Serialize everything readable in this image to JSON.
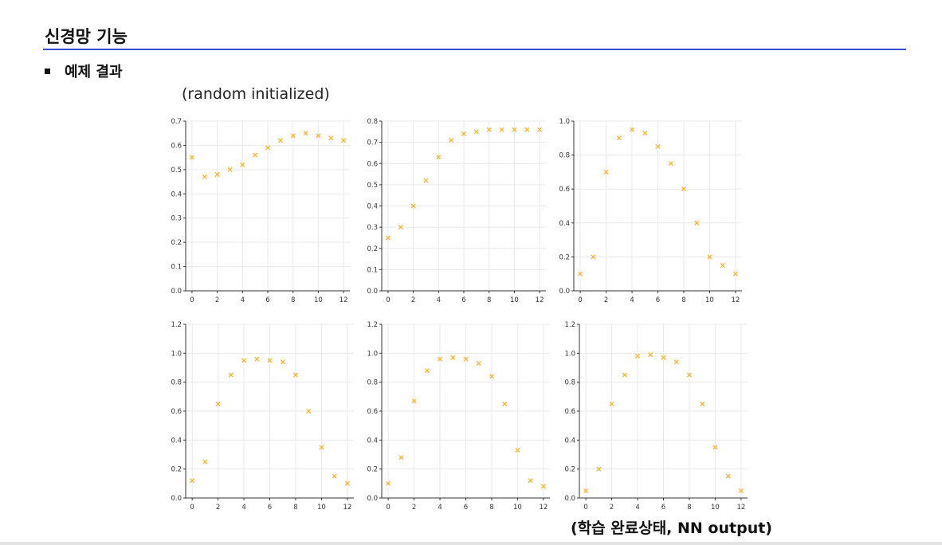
{
  "slide": {
    "title": "신경망 기능",
    "bullet": "예제 결과",
    "caption_top": "(random initialized)",
    "caption_bottom": "(학습 완료상태, NN output)"
  },
  "colors": {
    "accent_rule": "#3b4fd6",
    "marker": "#f5b42a"
  },
  "chart_data": [
    {
      "type": "scatter",
      "marker": "x",
      "x": [
        0,
        1,
        2,
        3,
        4,
        5,
        6,
        7,
        8,
        9,
        10,
        11,
        12
      ],
      "y": [
        0.55,
        0.47,
        0.48,
        0.5,
        0.52,
        0.56,
        0.59,
        0.62,
        0.64,
        0.65,
        0.64,
        0.63,
        0.62
      ],
      "xlim": [
        -0.5,
        12.5
      ],
      "ylim": [
        0,
        0.7
      ],
      "xticks": [
        0,
        2,
        4,
        6,
        8,
        10,
        12
      ],
      "yticks": [
        0,
        0.1,
        0.2,
        0.3,
        0.4,
        0.5,
        0.6,
        0.7
      ],
      "yticklabels": [
        "0.0",
        "0.1",
        "0.2",
        "0.3",
        "0.4",
        "0.5",
        "0.6",
        "0.7"
      ],
      "grid": true
    },
    {
      "type": "scatter",
      "marker": "x",
      "x": [
        0,
        1,
        2,
        3,
        4,
        5,
        6,
        7,
        8,
        9,
        10,
        11,
        12
      ],
      "y": [
        0.25,
        0.3,
        0.4,
        0.52,
        0.63,
        0.71,
        0.74,
        0.75,
        0.76,
        0.76,
        0.76,
        0.76,
        0.76
      ],
      "xlim": [
        -0.5,
        12.5
      ],
      "ylim": [
        0,
        0.8
      ],
      "xticks": [
        0,
        2,
        4,
        6,
        8,
        10,
        12
      ],
      "yticks": [
        0,
        0.1,
        0.2,
        0.3,
        0.4,
        0.5,
        0.6,
        0.7,
        0.8
      ],
      "yticklabels": [
        "0.0",
        "0.1",
        "0.2",
        "0.3",
        "0.4",
        "0.5",
        "0.6",
        "0.7",
        "0.8"
      ],
      "grid": true
    },
    {
      "type": "scatter",
      "marker": "x",
      "x": [
        0,
        1,
        2,
        3,
        4,
        5,
        6,
        7,
        8,
        9,
        10,
        11,
        12
      ],
      "y": [
        0.1,
        0.2,
        0.7,
        0.9,
        0.95,
        0.93,
        0.85,
        0.75,
        0.6,
        0.4,
        0.2,
        0.15,
        0.1
      ],
      "xlim": [
        -0.5,
        12.5
      ],
      "ylim": [
        0,
        1.0
      ],
      "xticks": [
        0,
        2,
        4,
        6,
        8,
        10,
        12
      ],
      "yticks": [
        0,
        0.2,
        0.4,
        0.6,
        0.8,
        1.0
      ],
      "yticklabels": [
        "0.0",
        "0.2",
        "0.4",
        "0.6",
        "0.8",
        "1.0"
      ],
      "grid": true
    },
    {
      "type": "scatter",
      "marker": "x",
      "x": [
        0,
        1,
        2,
        3,
        4,
        5,
        6,
        7,
        8,
        9,
        10,
        11,
        12
      ],
      "y": [
        0.12,
        0.25,
        0.65,
        0.85,
        0.95,
        0.96,
        0.95,
        0.94,
        0.85,
        0.6,
        0.35,
        0.15,
        0.1
      ],
      "xlim": [
        -0.5,
        12.5
      ],
      "ylim": [
        0,
        1.2
      ],
      "xticks": [
        0,
        2,
        4,
        6,
        8,
        10,
        12
      ],
      "yticks": [
        0,
        0.2,
        0.4,
        0.6,
        0.8,
        1.0,
        1.2
      ],
      "yticklabels": [
        "0.0",
        "0.2",
        "0.4",
        "0.6",
        "0.8",
        "1.0",
        "1.2"
      ],
      "grid": true
    },
    {
      "type": "scatter",
      "marker": "x",
      "x": [
        0,
        1,
        2,
        3,
        4,
        5,
        6,
        7,
        8,
        9,
        10,
        11,
        12
      ],
      "y": [
        0.1,
        0.28,
        0.67,
        0.88,
        0.96,
        0.97,
        0.96,
        0.93,
        0.84,
        0.65,
        0.33,
        0.12,
        0.08
      ],
      "xlim": [
        -0.5,
        12.5
      ],
      "ylim": [
        0,
        1.2
      ],
      "xticks": [
        0,
        2,
        4,
        6,
        8,
        10,
        12
      ],
      "yticks": [
        0,
        0.2,
        0.4,
        0.6,
        0.8,
        1.0,
        1.2
      ],
      "yticklabels": [
        "0.0",
        "0.2",
        "0.4",
        "0.6",
        "0.8",
        "1.0",
        "1.2"
      ],
      "grid": true
    },
    {
      "type": "scatter",
      "marker": "x",
      "x": [
        0,
        1,
        2,
        3,
        4,
        5,
        6,
        7,
        8,
        9,
        10,
        11,
        12
      ],
      "y": [
        0.05,
        0.2,
        0.65,
        0.85,
        0.98,
        0.99,
        0.97,
        0.94,
        0.85,
        0.65,
        0.35,
        0.15,
        0.05
      ],
      "xlim": [
        -0.5,
        12.5
      ],
      "ylim": [
        0,
        1.2
      ],
      "xticks": [
        0,
        2,
        4,
        6,
        8,
        10,
        12
      ],
      "yticks": [
        0,
        0.2,
        0.4,
        0.6,
        0.8,
        1.0,
        1.2
      ],
      "yticklabels": [
        "0.0",
        "0.2",
        "0.4",
        "0.6",
        "0.8",
        "1.0",
        "1.2"
      ],
      "grid": true
    }
  ]
}
